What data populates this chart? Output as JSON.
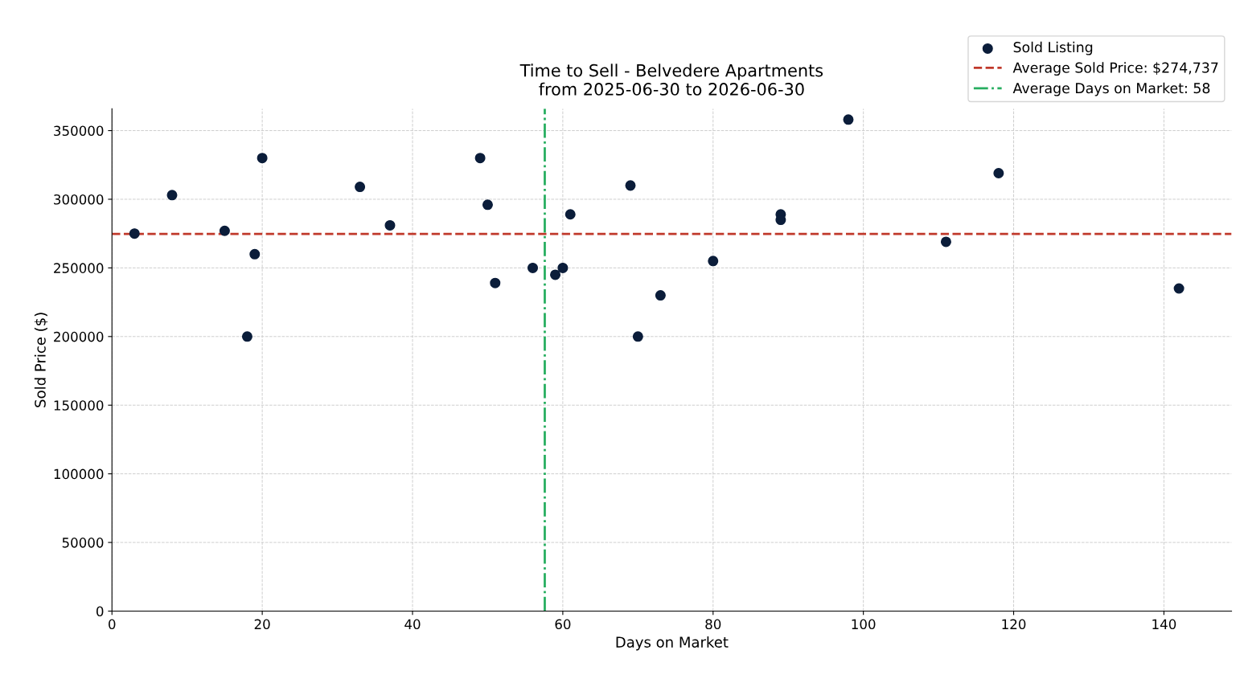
{
  "chart_data": {
    "type": "scatter",
    "title": "Time to Sell - Belvedere Apartments\nfrom 2025-06-30 to 2026-06-30",
    "xlabel": "Days on Market",
    "ylabel": "Sold Price ($)",
    "series": [
      {
        "name": "Sold Listing",
        "color": "#0b1d3a",
        "x": [
          3,
          8,
          15,
          19,
          18,
          20,
          33,
          37,
          49,
          50,
          51,
          56,
          59,
          60,
          61,
          69,
          70,
          73,
          80,
          89,
          89,
          98,
          111,
          118,
          142
        ],
        "values": [
          275000,
          303000,
          277000,
          260000,
          200000,
          330000,
          309000,
          281000,
          330000,
          296000,
          239000,
          250000,
          245000,
          250000,
          289000,
          310000,
          200000,
          230000,
          255000,
          289000,
          285000,
          358000,
          269000,
          319000,
          235000
        ]
      }
    ],
    "ref_lines": [
      {
        "axis": "y",
        "value": 274737,
        "label": "Average Sold Price: $274,737",
        "color": "#c0392b",
        "line_style": "dashed"
      },
      {
        "axis": "x",
        "value": 57.6,
        "label": "Average Days on Market: 58",
        "color": "#27ae60",
        "line_style": "dashdot"
      }
    ],
    "xlim": [
      0,
      149
    ],
    "ylim": [
      0,
      366000
    ],
    "xticks": [
      0,
      20,
      40,
      60,
      80,
      100,
      120,
      140
    ],
    "yticks": [
      0,
      50000,
      100000,
      150000,
      200000,
      250000,
      300000,
      350000
    ],
    "grid": true,
    "legend": "top right",
    "marker": "circle"
  }
}
